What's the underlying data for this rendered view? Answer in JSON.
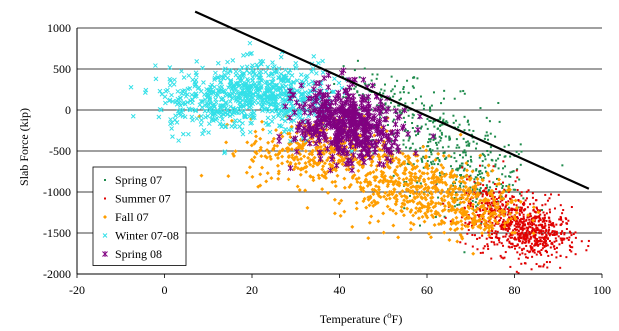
{
  "chart_data": {
    "type": "scatter",
    "xlabel": "Temperature (",
    "xlabel_sup": "o",
    "xlabel_end": "F)",
    "ylabel": "Slab Force (kip)",
    "xlim": [
      -20,
      100
    ],
    "ylim": [
      -2000,
      1000
    ],
    "x_ticks": [
      -20,
      0,
      20,
      40,
      60,
      80,
      100
    ],
    "y_ticks": [
      1000,
      500,
      0,
      -500,
      -1000,
      -1500,
      -2000
    ],
    "grid": "horizontal",
    "legend_position": "bottom-left",
    "trend_line": {
      "x": [
        7,
        97
      ],
      "y": [
        1200,
        -960
      ],
      "color": "#000000"
    },
    "series": [
      {
        "name": "Spring 07",
        "marker": "dot",
        "color": "#1e8b4c",
        "clusters": [
          {
            "cx": 48,
            "cy": 100,
            "sx": 6,
            "sy": 200,
            "n": 140
          },
          {
            "cx": 62,
            "cy": -350,
            "sx": 7,
            "sy": 250,
            "n": 220
          },
          {
            "cx": 72,
            "cy": -850,
            "sx": 6,
            "sy": 220,
            "n": 200
          }
        ]
      },
      {
        "name": "Summer 07",
        "marker": "dot",
        "color": "#e00000",
        "clusters": [
          {
            "cx": 80,
            "cy": -1400,
            "sx": 5,
            "sy": 180,
            "n": 420
          },
          {
            "cx": 86,
            "cy": -1550,
            "sx": 4,
            "sy": 150,
            "n": 300
          },
          {
            "cx": 74,
            "cy": -1150,
            "sx": 4,
            "sy": 180,
            "n": 140
          }
        ]
      },
      {
        "name": "Fall 07",
        "marker": "diamond",
        "color": "#ff9e00",
        "clusters": [
          {
            "cx": 35,
            "cy": -500,
            "sx": 8,
            "sy": 200,
            "n": 400
          },
          {
            "cx": 55,
            "cy": -900,
            "sx": 8,
            "sy": 220,
            "n": 420
          },
          {
            "cx": 70,
            "cy": -1200,
            "sx": 6,
            "sy": 180,
            "n": 260
          }
        ]
      },
      {
        "name": "Winter 07-08",
        "marker": "x",
        "color": "#33e0e8",
        "clusters": [
          {
            "cx": 10,
            "cy": 100,
            "sx": 6,
            "sy": 200,
            "n": 260
          },
          {
            "cx": 22,
            "cy": 220,
            "sx": 6,
            "sy": 180,
            "n": 360
          },
          {
            "cx": 30,
            "cy": 100,
            "sx": 5,
            "sy": 200,
            "n": 160
          }
        ]
      },
      {
        "name": "Spring 08",
        "marker": "star",
        "color": "#800080",
        "clusters": [
          {
            "cx": 40,
            "cy": -120,
            "sx": 5,
            "sy": 220,
            "n": 340
          },
          {
            "cx": 46,
            "cy": -300,
            "sx": 5,
            "sy": 160,
            "n": 160
          }
        ]
      }
    ]
  }
}
